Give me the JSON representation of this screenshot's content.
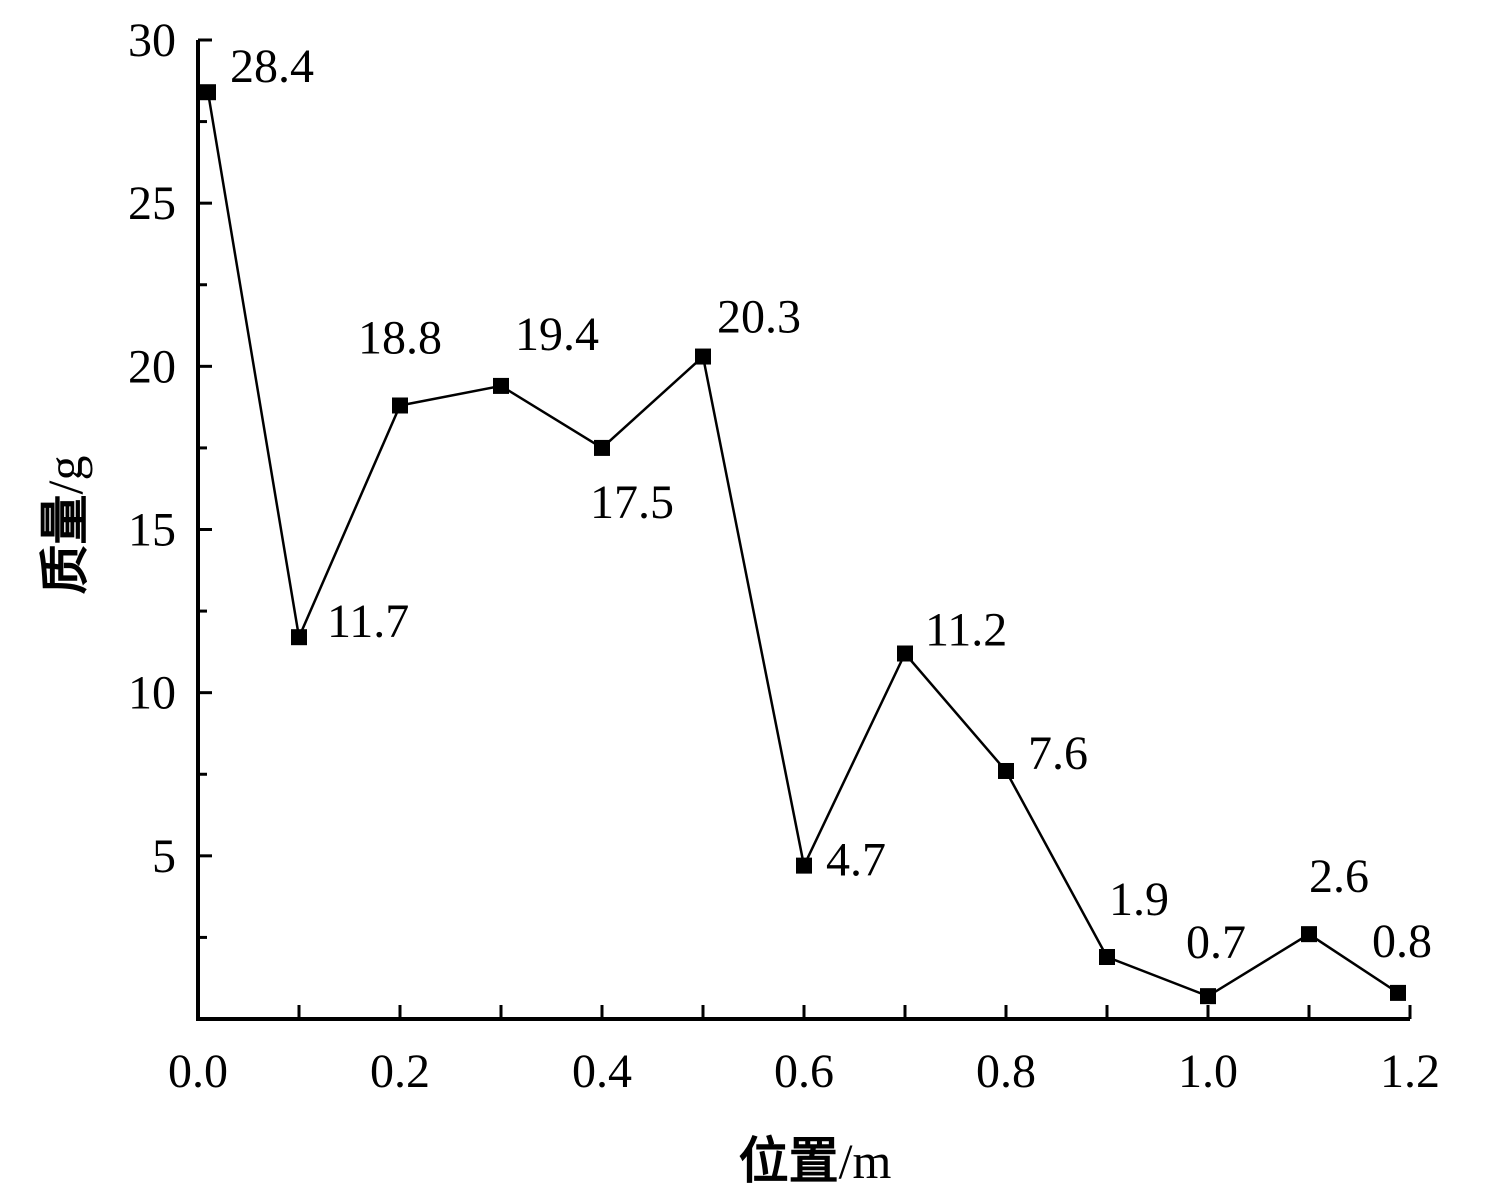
{
  "chart_data": {
    "type": "line",
    "xlabel_main": "位置",
    "xlabel_unit": "/m",
    "ylabel_main": "质量",
    "ylabel_unit": "/g",
    "xlim": [
      0.0,
      1.2
    ],
    "ylim": [
      0,
      30
    ],
    "x_ticks": [
      0.0,
      0.2,
      0.4,
      0.6,
      0.8,
      1.0,
      1.2
    ],
    "x_tick_labels": [
      "0.0",
      "0.2",
      "0.4",
      "0.6",
      "0.8",
      "1.0",
      "1.2"
    ],
    "y_ticks": [
      5,
      10,
      15,
      20,
      25,
      30
    ],
    "y_tick_labels": [
      "5",
      "10",
      "15",
      "20",
      "25",
      "30"
    ],
    "series": [
      {
        "x": [
          0.0,
          0.1,
          0.2,
          0.3,
          0.4,
          0.5,
          0.6,
          0.7,
          0.8,
          0.9,
          1.0,
          1.1,
          1.2
        ],
        "y": [
          28.4,
          11.7,
          18.8,
          19.4,
          17.5,
          20.3,
          4.7,
          11.2,
          7.6,
          1.9,
          0.7,
          2.6,
          0.8
        ],
        "labels": [
          "28.4",
          "11.7",
          "18.8",
          "19.4",
          "17.5",
          "20.3",
          "4.7",
          "11.2",
          "7.6",
          "1.9",
          "0.7",
          "2.6",
          "0.8"
        ]
      }
    ],
    "marker": "square",
    "grid": false
  }
}
